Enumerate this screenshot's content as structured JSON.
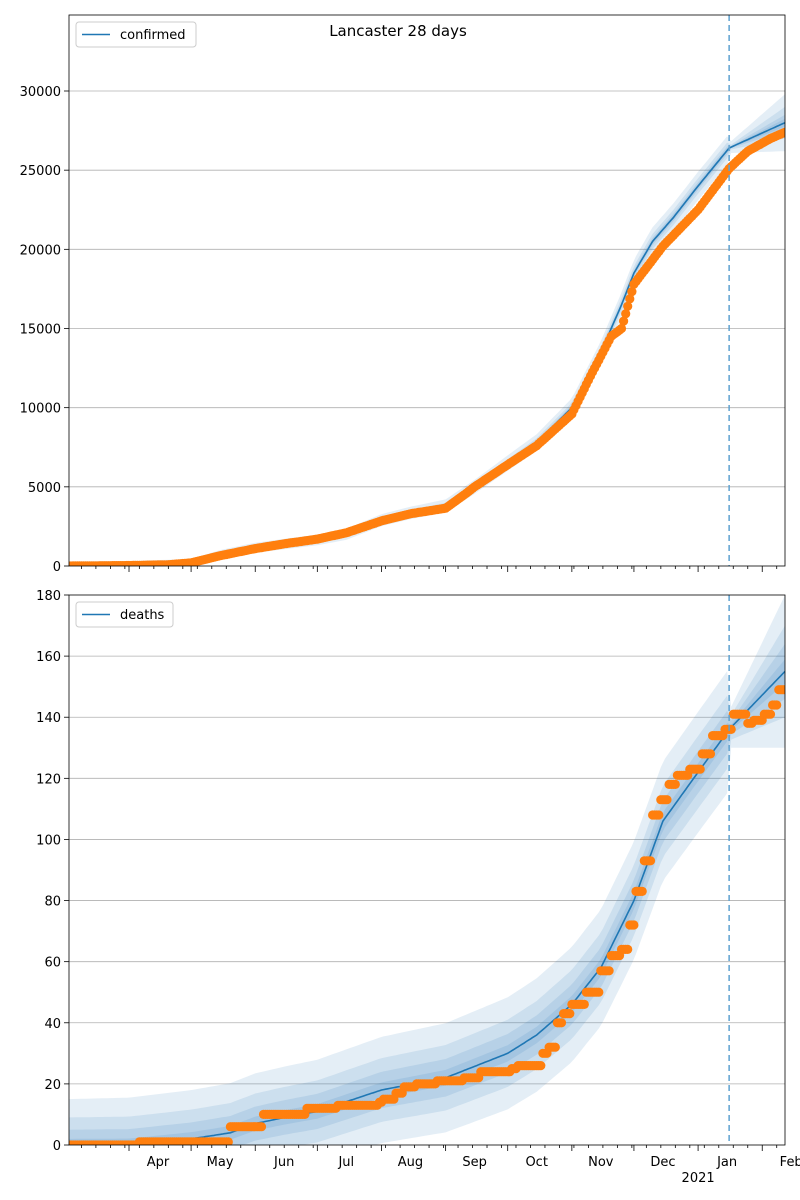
{
  "chart_data": [
    {
      "type": "line",
      "title": "Lancaster 28 days",
      "legend": {
        "label": "confirmed",
        "placement": "top-left"
      },
      "y_ticks": [
        "0",
        "5000",
        "10000",
        "15000",
        "20000",
        "25000",
        "30000"
      ],
      "ylim": [
        0,
        34800
      ],
      "grid": true,
      "forecast_start": "2021-01-16",
      "model": {
        "name": "confirmed",
        "points": [
          [
            "2020-03-01",
            0
          ],
          [
            "2020-04-01",
            30
          ],
          [
            "2020-05-01",
            150
          ],
          [
            "2020-05-15",
            700
          ],
          [
            "2020-06-01",
            1150
          ],
          [
            "2020-07-01",
            1650
          ],
          [
            "2020-07-15",
            2000
          ],
          [
            "2020-08-01",
            2900
          ],
          [
            "2020-08-15",
            3350
          ],
          [
            "2020-09-01",
            3800
          ],
          [
            "2020-09-15",
            5000
          ],
          [
            "2020-10-01",
            6500
          ],
          [
            "2020-10-15",
            7800
          ],
          [
            "2020-11-01",
            10000
          ],
          [
            "2020-11-15",
            13500
          ],
          [
            "2020-11-25",
            16500
          ],
          [
            "2020-12-01",
            18500
          ],
          [
            "2020-12-10",
            20500
          ],
          [
            "2020-12-20",
            22000
          ],
          [
            "2021-01-01",
            24000
          ],
          [
            "2021-01-16",
            26400
          ],
          [
            "2021-02-12",
            28000
          ]
        ],
        "bands": [
          [
            800,
            900,
            1800
          ],
          [
            300,
            500,
            1000
          ],
          [
            150,
            250,
            500
          ],
          [
            60,
            120,
            250
          ]
        ],
        "color": "#1f77b4"
      },
      "observed": {
        "points": [
          [
            "2020-03-01",
            0
          ],
          [
            "2020-04-01",
            30
          ],
          [
            "2020-04-20",
            80
          ],
          [
            "2020-05-01",
            200
          ],
          [
            "2020-05-15",
            650
          ],
          [
            "2020-06-01",
            1100
          ],
          [
            "2020-06-15",
            1400
          ],
          [
            "2020-07-01",
            1700
          ],
          [
            "2020-07-15",
            2100
          ],
          [
            "2020-08-01",
            2850
          ],
          [
            "2020-08-15",
            3300
          ],
          [
            "2020-09-01",
            3650
          ],
          [
            "2020-09-10",
            4500
          ],
          [
            "2020-09-15",
            5000
          ],
          [
            "2020-10-01",
            6400
          ],
          [
            "2020-10-15",
            7600
          ],
          [
            "2020-11-01",
            9600
          ],
          [
            "2020-11-10",
            12000
          ],
          [
            "2020-11-20",
            14500
          ],
          [
            "2020-11-25",
            15000
          ],
          [
            "2020-12-01",
            17800
          ],
          [
            "2020-12-15",
            20200
          ],
          [
            "2021-01-01",
            22500
          ],
          [
            "2021-01-16",
            25100
          ],
          [
            "2021-01-25",
            26200
          ],
          [
            "2021-02-05",
            27000
          ],
          [
            "2021-02-12",
            27400
          ]
        ],
        "color": "#ff7f0e"
      }
    },
    {
      "type": "line",
      "legend": {
        "label": "deaths",
        "placement": "top-left"
      },
      "y_ticks": [
        "0",
        "20",
        "40",
        "60",
        "80",
        "100",
        "120",
        "140",
        "160",
        "180"
      ],
      "ylim": [
        0,
        180
      ],
      "grid": true,
      "forecast_start": "2021-01-16",
      "model": {
        "name": "deaths",
        "points": [
          [
            "2020-03-01",
            0
          ],
          [
            "2020-04-01",
            0
          ],
          [
            "2020-05-01",
            2
          ],
          [
            "2020-05-20",
            4
          ],
          [
            "2020-06-01",
            7
          ],
          [
            "2020-06-15",
            9
          ],
          [
            "2020-07-01",
            11
          ],
          [
            "2020-08-01",
            18
          ],
          [
            "2020-09-01",
            22
          ],
          [
            "2020-10-01",
            30
          ],
          [
            "2020-10-15",
            36
          ],
          [
            "2020-11-01",
            46
          ],
          [
            "2020-11-15",
            58
          ],
          [
            "2020-12-01",
            80
          ],
          [
            "2020-12-15",
            106
          ],
          [
            "2021-01-01",
            122
          ],
          [
            "2021-01-16",
            136
          ],
          [
            "2021-02-12",
            155
          ]
        ],
        "bands": [
          [
            15,
            20,
            25
          ],
          [
            9,
            12,
            15
          ],
          [
            5,
            7,
            9
          ],
          [
            2,
            3,
            4
          ]
        ],
        "color": "#1f77b4"
      },
      "observed": {
        "points": [
          [
            "2020-03-01",
            0
          ],
          [
            "2020-04-05",
            0
          ],
          [
            "2020-04-06",
            1
          ],
          [
            "2020-05-19",
            1
          ],
          [
            "2020-05-20",
            6
          ],
          [
            "2020-06-04",
            6
          ],
          [
            "2020-06-05",
            10
          ],
          [
            "2020-06-25",
            10
          ],
          [
            "2020-06-26",
            12
          ],
          [
            "2020-07-10",
            12
          ],
          [
            "2020-07-11",
            13
          ],
          [
            "2020-07-31",
            14
          ],
          [
            "2020-08-02",
            15
          ],
          [
            "2020-08-08",
            17
          ],
          [
            "2020-08-12",
            19
          ],
          [
            "2020-08-18",
            20
          ],
          [
            "2020-08-28",
            21
          ],
          [
            "2020-09-10",
            22
          ],
          [
            "2020-09-18",
            24
          ],
          [
            "2020-10-03",
            25
          ],
          [
            "2020-10-06",
            26
          ],
          [
            "2020-10-15",
            26
          ],
          [
            "2020-10-18",
            30
          ],
          [
            "2020-10-21",
            32
          ],
          [
            "2020-10-25",
            40
          ],
          [
            "2020-10-28",
            43
          ],
          [
            "2020-11-01",
            46
          ],
          [
            "2020-11-08",
            50
          ],
          [
            "2020-11-15",
            57
          ],
          [
            "2020-11-20",
            62
          ],
          [
            "2020-11-25",
            64
          ],
          [
            "2020-11-29",
            72
          ],
          [
            "2020-12-02",
            83
          ],
          [
            "2020-12-06",
            93
          ],
          [
            "2020-12-10",
            108
          ],
          [
            "2020-12-14",
            113
          ],
          [
            "2020-12-18",
            118
          ],
          [
            "2020-12-22",
            121
          ],
          [
            "2020-12-28",
            123
          ],
          [
            "2021-01-03",
            128
          ],
          [
            "2021-01-08",
            134
          ],
          [
            "2021-01-14",
            136
          ],
          [
            "2021-01-18",
            141
          ],
          [
            "2021-01-22",
            141
          ],
          [
            "2021-01-25",
            138
          ],
          [
            "2021-01-28",
            139
          ],
          [
            "2021-02-02",
            141
          ],
          [
            "2021-02-06",
            144
          ],
          [
            "2021-02-09",
            149
          ],
          [
            "2021-02-12",
            149
          ]
        ],
        "color": "#ff7f0e"
      }
    }
  ],
  "x_axis": {
    "month_labels": [
      [
        "2020-04-15",
        "Apr"
      ],
      [
        "2020-05-15",
        "May"
      ],
      [
        "2020-06-15",
        "Jun"
      ],
      [
        "2020-07-15",
        "Jul"
      ],
      [
        "2020-08-15",
        "Aug"
      ],
      [
        "2020-09-15",
        "Sep"
      ],
      [
        "2020-10-15",
        "Oct"
      ],
      [
        "2020-11-15",
        "Nov"
      ],
      [
        "2020-12-15",
        "Dec"
      ],
      [
        "2021-01-15",
        "Jan"
      ],
      [
        "2021-02-15",
        "Feb"
      ]
    ],
    "year_label": "2021",
    "year_label_date": "2021-01-01",
    "xlim": [
      "2020-03-03",
      "2021-02-12"
    ]
  }
}
